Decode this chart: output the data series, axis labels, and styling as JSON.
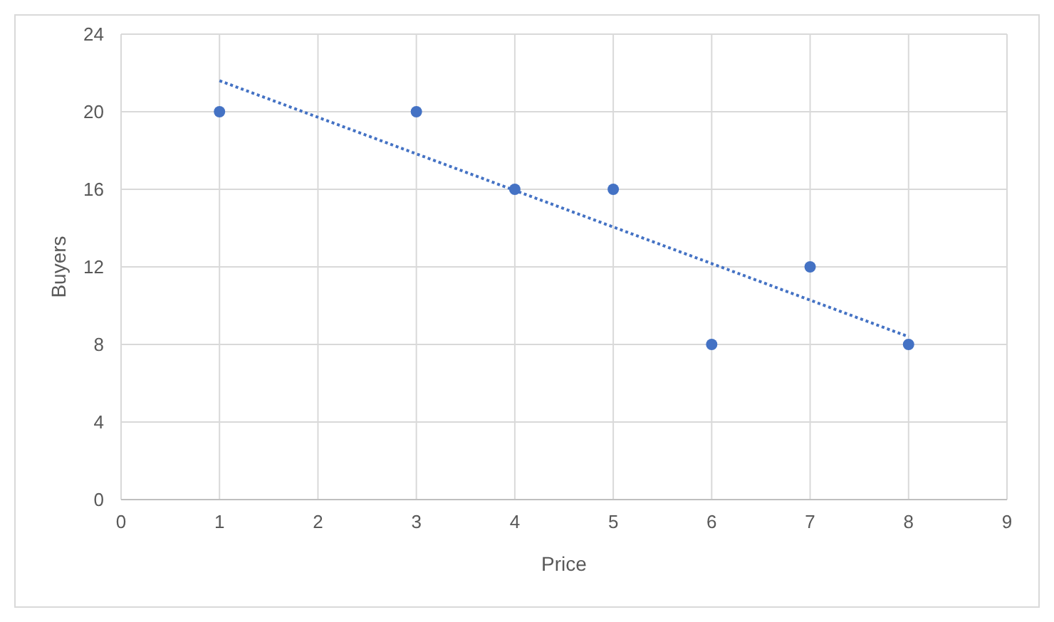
{
  "chart_data": {
    "type": "scatter",
    "xlabel": "Price",
    "ylabel": "Buyers",
    "xlim": [
      0,
      9
    ],
    "xticks": [
      0,
      1,
      2,
      3,
      4,
      5,
      6,
      7,
      8,
      9
    ],
    "ylim": [
      0,
      24
    ],
    "yticks": [
      0,
      4,
      8,
      12,
      16,
      20,
      24
    ],
    "grid": true,
    "marker": "circle",
    "series": [
      {
        "color": "#4472c4",
        "x": [
          1,
          3,
          4,
          5,
          6,
          7,
          8
        ],
        "values": [
          20,
          20,
          16,
          16,
          8,
          12,
          8
        ]
      },
      {
        "type": "line",
        "color": "#4472c4",
        "line_style": "dotted",
        "marker": "none",
        "x": [
          1,
          8
        ],
        "values": [
          21.6,
          8.4
        ]
      }
    ]
  }
}
